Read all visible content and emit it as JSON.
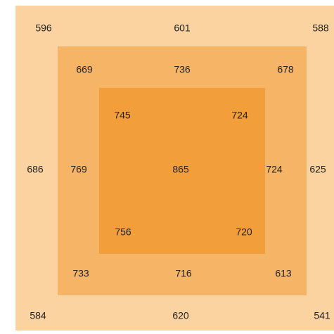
{
  "layers": [
    {
      "color": "#fad3a1",
      "labels": [
        596,
        601,
        588,
        686,
        625,
        584,
        620,
        541
      ]
    },
    {
      "color": "#f5b466",
      "labels": [
        669,
        736,
        678,
        769,
        724,
        733,
        716,
        613
      ]
    },
    {
      "color": "#f29e3a",
      "labels": [
        745,
        724,
        865,
        756,
        720
      ]
    }
  ]
}
